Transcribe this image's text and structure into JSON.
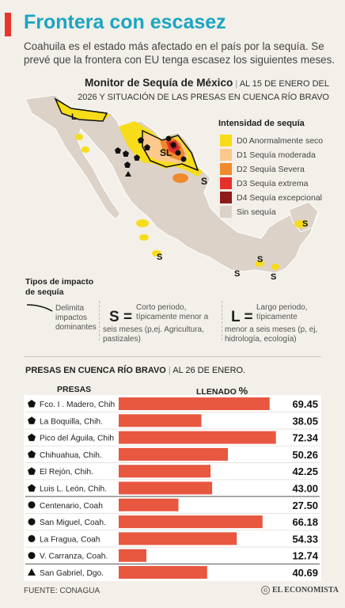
{
  "header": {
    "title": "Frontera con escasez",
    "subtitle": "Coahuila es el estado más afectado en el país por la sequía. Se prevé que la frontera con EU tenga escasez los siguientes meses."
  },
  "map": {
    "title": "Monitor de Sequía de México",
    "date_line": "AL 15 DE ENERO DEL 2026 Y SITUACIÓN DE LAS PRESAS EN CUENCA RÍO BRAVO",
    "legend_title": "Intensidad de sequía",
    "legend": [
      {
        "label": "D0 Anormalmente seco",
        "color": "#f7dc19"
      },
      {
        "label": "D1 Sequía moderada",
        "color": "#fbc98c"
      },
      {
        "label": "D2 Sequía Severa",
        "color": "#f08a2c"
      },
      {
        "label": "D3 Sequía extrema",
        "color": "#e4322b"
      },
      {
        "label": "D4 Sequía excepcional",
        "color": "#8e1c1a"
      },
      {
        "label": "Sin sequía",
        "color": "#dcd2c8"
      }
    ],
    "labels": {
      "L": "L",
      "SL": "SL",
      "S": "S"
    }
  },
  "impact": {
    "title": "Tipos de impacto de sequía",
    "dominant": "Delimita impactos dominantes",
    "short_symbol": "S =",
    "short_text_1": "Corto periodo, típicamente menor a",
    "short_text_2": "seis meses (p,ej. Agricultura, pastizales)",
    "long_symbol": "L =",
    "long_text_1": "Largo periodo, típicamente",
    "long_text_2": "menor a seis meses (p, ej, hidrología, ecología)"
  },
  "presas": {
    "title": "PRESAS EN CUENCA RÍO BRAVO",
    "date": "AL 26 DE ENERO.",
    "col_presas": "PRESAS",
    "col_llenado": "LLENADO",
    "col_unit": "%"
  },
  "chart_data": {
    "type": "bar",
    "orientation": "horizontal",
    "unit": "%",
    "xlim": [
      0,
      75
    ],
    "categories": [
      "Fco. I . Madero, Chih",
      "La Boquilla, Chih.",
      "Pico del Águila, Chih",
      "Chihuahua, Chih.",
      "El Rejón, Chih.",
      "Luis L. León, Chih.",
      "Centenario, Coah",
      "San Miguel, Coah.",
      "La Fragua, Coah",
      "V. Carranza, Coah.",
      "San Gabriel, Dgo."
    ],
    "values": [
      69.45,
      38.05,
      72.34,
      50.26,
      42.25,
      43.0,
      27.5,
      66.18,
      54.33,
      12.74,
      40.69
    ],
    "value_labels": [
      "69.45",
      "38.05",
      "72.34",
      "50.26",
      "42.25",
      "43.00",
      "27.50",
      "66.18",
      "54.33",
      "12.74",
      "40.69"
    ],
    "markers": [
      "pentagon",
      "pentagon",
      "pentagon",
      "pentagon",
      "pentagon",
      "pentagon",
      "circle",
      "circle",
      "circle",
      "circle",
      "triangle"
    ],
    "bar_color": "#e8573f"
  },
  "footer": {
    "source": "FUENTE: CONAGUA",
    "brand": "EL ECONOMISTA"
  }
}
